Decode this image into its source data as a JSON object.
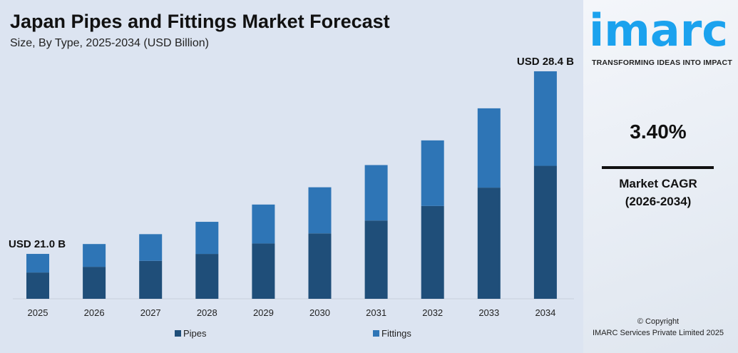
{
  "chart_data": {
    "type": "bar",
    "stacked": true,
    "title": "Japan Pipes and Fittings Market Forecast",
    "subtitle": "Size, By Type, 2025-2034 (USD Billion)",
    "categories": [
      "2025",
      "2026",
      "2027",
      "2028",
      "2029",
      "2030",
      "2031",
      "2032",
      "2033",
      "2034"
    ],
    "series": [
      {
        "name": "Pipes",
        "color": "#1f4e79",
        "values": [
          12.3,
          12.5,
          12.8,
          13.0,
          13.5,
          13.9,
          14.4,
          15.0,
          15.7,
          16.6
        ]
      },
      {
        "name": "Fittings",
        "color": "#2e75b6",
        "values": [
          8.7,
          8.9,
          9.0,
          9.3,
          9.5,
          9.8,
          10.2,
          10.6,
          11.2,
          11.8
        ]
      }
    ],
    "totals": [
      21.0,
      21.4,
      21.8,
      22.3,
      23.0,
      23.7,
      24.6,
      25.6,
      26.9,
      28.4
    ],
    "annotations": {
      "first": "USD 21.0 B",
      "last": "USD 28.4 B"
    },
    "legend_position": "bottom",
    "grid": false
  },
  "brand": {
    "logo": "imarc",
    "tagline": "TRANSFORMING IDEAS INTO IMPACT",
    "color": "#1ba2ee"
  },
  "cagr": {
    "value": "3.40%",
    "label": "Market CAGR",
    "period": "(2026-2034)"
  },
  "footer": {
    "copyright": "© Copyright",
    "company": "IMARC Services Private Limited 2025"
  }
}
